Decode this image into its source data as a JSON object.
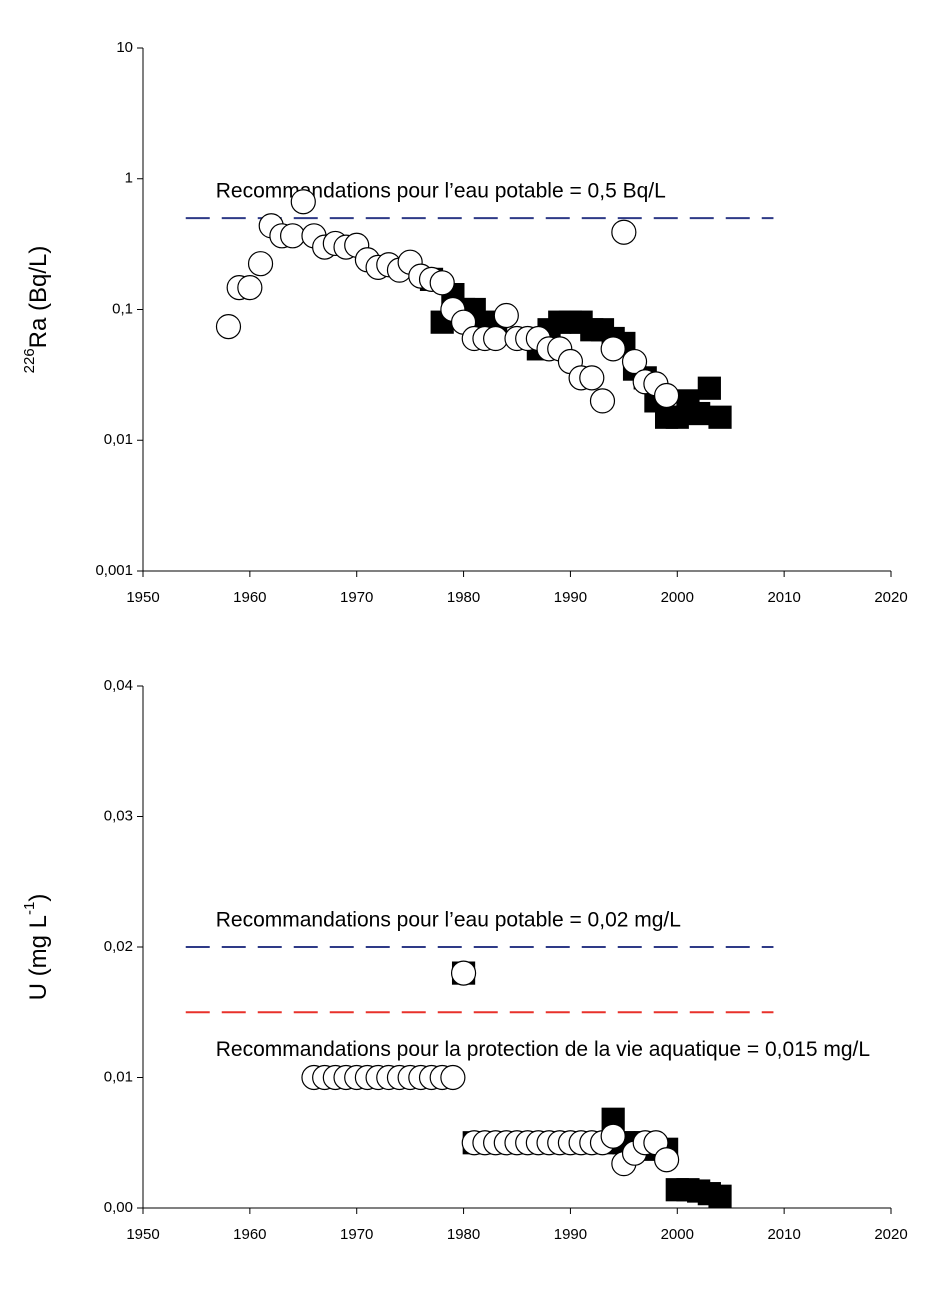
{
  "chart_data": [
    {
      "type": "scatter",
      "log_y": true,
      "ylabel": [
        {
          "text": "226",
          "sup": true
        },
        {
          "text": "Ra (Bq/L)"
        }
      ],
      "xlim": [
        1950,
        2020
      ],
      "xticks": [
        1950,
        1960,
        1970,
        1980,
        1990,
        2000,
        2010,
        2020
      ],
      "ylim": [
        0.001,
        10
      ],
      "yticks": [
        {
          "value": 0.001,
          "label": "0,001"
        },
        {
          "value": 0.01,
          "label": "0,01"
        },
        {
          "value": 0.1,
          "label": "0,1"
        },
        1,
        10
      ],
      "reference_lines": [
        {
          "text": "Recommandations pour l’eau potable = 0,5 Bq/L",
          "value": 0.5,
          "x": [
            1954,
            2009
          ],
          "color": "#2e3a87"
        }
      ],
      "series": [
        {
          "marker": "square",
          "color": "#000000",
          "x": [
            1977,
            1978,
            1979,
            1980,
            1981,
            1982,
            1983,
            1987,
            1988,
            1989,
            1990,
            1991,
            1992,
            1993,
            1994,
            1995,
            1996,
            1997,
            1998,
            1999,
            2000,
            2001,
            2002,
            2003,
            2004
          ],
          "values": [
            0.17,
            0.08,
            0.13,
            0.1,
            0.1,
            0.08,
            0.07,
            0.05,
            0.07,
            0.08,
            0.08,
            0.08,
            0.07,
            0.07,
            0.06,
            0.055,
            0.035,
            0.03,
            0.02,
            0.015,
            0.015,
            0.02,
            0.016,
            0.025,
            0.015
          ]
        },
        {
          "marker": "circle",
          "color": "#ffffff",
          "x": [
            1958,
            1959,
            1960,
            1961,
            1962,
            1963,
            1964,
            1965,
            1966,
            1967,
            1968,
            1969,
            1970,
            1971,
            1972,
            1973,
            1974,
            1975,
            1976,
            1977,
            1978,
            1979,
            1980,
            1981,
            1982,
            1983,
            1984,
            1985,
            1986,
            1987,
            1988,
            1989,
            1990,
            1991,
            1992,
            1993,
            1994,
            1995,
            1996,
            1997,
            1998,
            1999
          ],
          "values": [
            0.074,
            0.147,
            0.147,
            0.224,
            0.437,
            0.366,
            0.366,
            0.667,
            0.366,
            0.3,
            0.32,
            0.3,
            0.31,
            0.24,
            0.21,
            0.22,
            0.2,
            0.23,
            0.18,
            0.17,
            0.16,
            0.1,
            0.08,
            0.06,
            0.06,
            0.06,
            0.09,
            0.06,
            0.06,
            0.06,
            0.05,
            0.05,
            0.04,
            0.03,
            0.03,
            0.02,
            0.05,
            0.39,
            0.04,
            0.028,
            0.027,
            0.022
          ]
        }
      ]
    },
    {
      "type": "scatter",
      "log_y": false,
      "ylabel": [
        {
          "text": "U (mg L"
        },
        {
          "text": "-1",
          "sup": true
        },
        {
          "text": ")"
        }
      ],
      "xlim": [
        1950,
        2020
      ],
      "xticks": [
        1950,
        1960,
        1970,
        1980,
        1990,
        2000,
        2010,
        2020
      ],
      "ylim": [
        0,
        0.04
      ],
      "yticks": [
        {
          "value": 0,
          "label": "0,00"
        },
        {
          "value": 0.01,
          "label": "0,01"
        },
        {
          "value": 0.02,
          "label": "0,02"
        },
        {
          "value": 0.03,
          "label": "0,03"
        },
        {
          "value": 0.04,
          "label": "0,04"
        }
      ],
      "reference_lines": [
        {
          "text": "Recommandations pour l’eau potable = 0,02 mg/L",
          "value": 0.02,
          "x": [
            1954,
            2009
          ],
          "color": "#2e3a87",
          "text_side": "above"
        },
        {
          "text": "Recommandations pour la protection de la vie aquatique = 0,015 mg/L",
          "value": 0.015,
          "x": [
            1954,
            2009
          ],
          "color": "#e8312a",
          "text_side": "below"
        }
      ],
      "series": [
        {
          "marker": "square",
          "color": "#000000",
          "x": [
            1980,
            1981,
            1982,
            1983,
            1984,
            1985,
            1986,
            1987,
            1988,
            1989,
            1990,
            1991,
            1992,
            1993,
            1994,
            1995,
            1996,
            1997,
            1998,
            1999,
            2000,
            2001,
            2002,
            2003,
            2004
          ],
          "values": [
            0.018,
            0.005,
            0.005,
            0.005,
            0.005,
            0.005,
            0.005,
            0.005,
            0.005,
            0.005,
            0.005,
            0.005,
            0.005,
            0.005,
            0.0068,
            0.005,
            0.005,
            0.005,
            0.0045,
            0.0045,
            0.0014,
            0.0014,
            0.0013,
            0.0011,
            0.0009
          ]
        },
        {
          "marker": "circle",
          "color": "#ffffff",
          "x": [
            1966,
            1967,
            1968,
            1969,
            1970,
            1971,
            1972,
            1973,
            1974,
            1975,
            1976,
            1977,
            1978,
            1979,
            1980,
            1981,
            1982,
            1983,
            1984,
            1985,
            1986,
            1987,
            1988,
            1989,
            1990,
            1991,
            1992,
            1993,
            1994,
            1995,
            1996,
            1997,
            1998,
            1999
          ],
          "values": [
            0.01,
            0.01,
            0.01,
            0.01,
            0.01,
            0.01,
            0.01,
            0.01,
            0.01,
            0.01,
            0.01,
            0.01,
            0.01,
            0.01,
            0.018,
            0.005,
            0.005,
            0.005,
            0.005,
            0.005,
            0.005,
            0.005,
            0.005,
            0.005,
            0.005,
            0.005,
            0.005,
            0.005,
            0.0055,
            0.0034,
            0.0042,
            0.005,
            0.005,
            0.0037
          ]
        }
      ]
    }
  ]
}
